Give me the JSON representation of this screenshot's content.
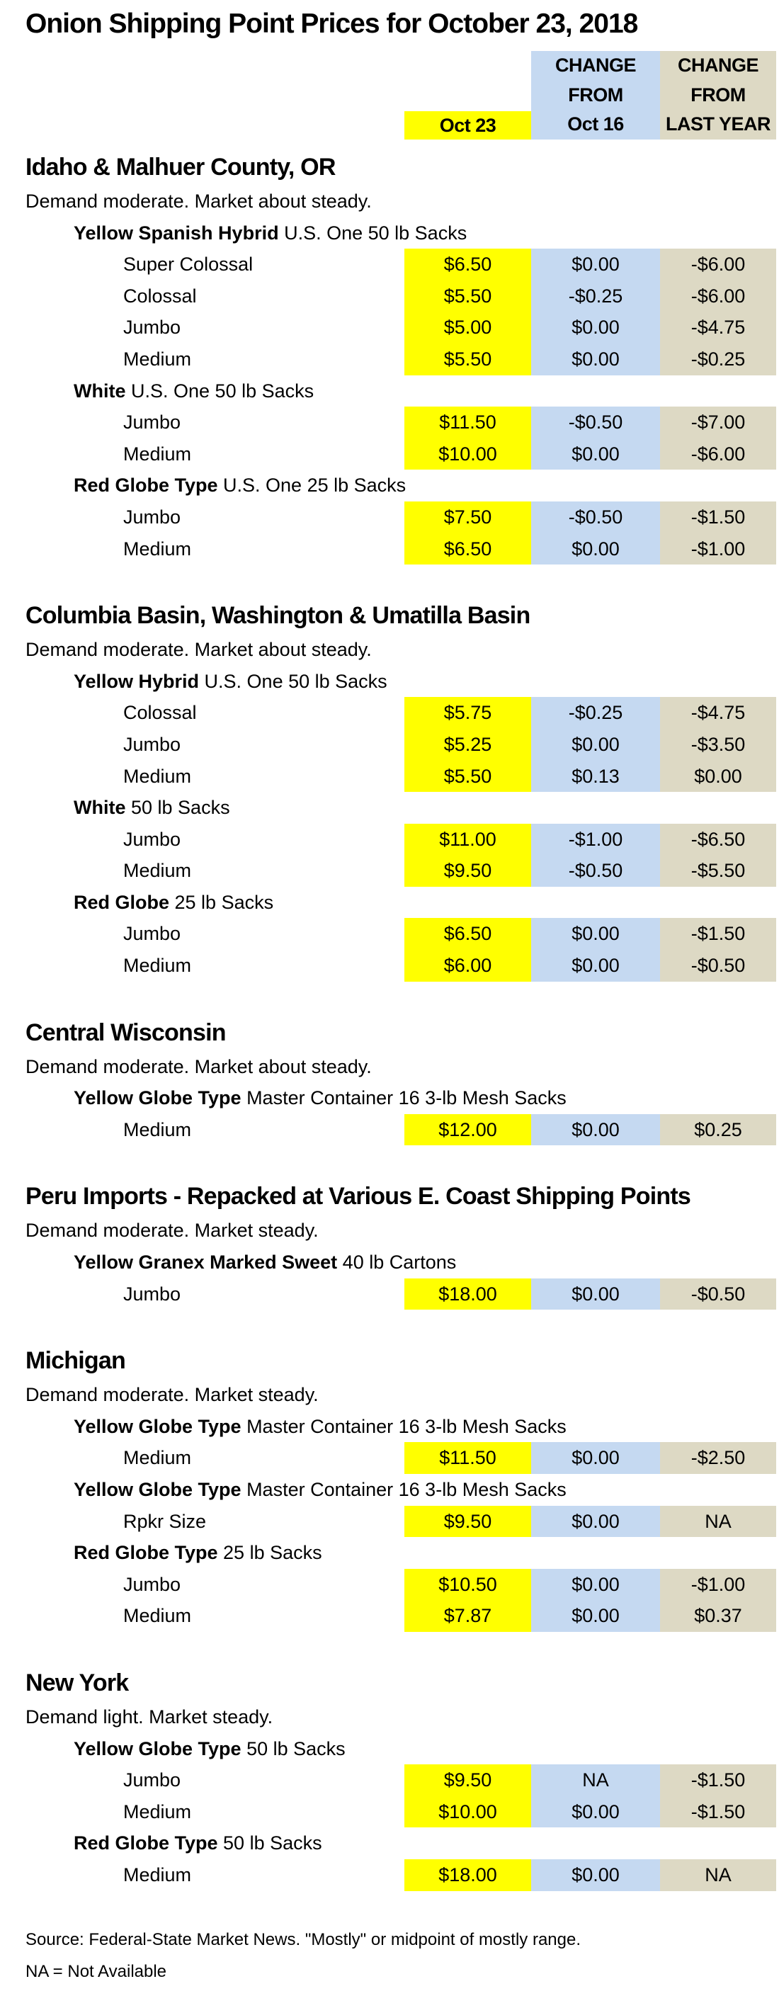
{
  "title": "Onion Shipping Point Prices for October 23, 2018",
  "colors": {
    "current": "#FFFF00",
    "week_change": "#C5D9F1",
    "year_change": "#DDD9C4"
  },
  "columns": {
    "current": [
      "Oct 23"
    ],
    "week_change": [
      "CHANGE",
      "FROM",
      "Oct 16"
    ],
    "year_change": [
      "CHANGE",
      "FROM",
      "LAST YEAR"
    ]
  },
  "sections": [
    {
      "name": "Idaho & Malhuer County, OR",
      "demand": "Demand moderate. Market about steady.",
      "groups": [
        {
          "variety": "Yellow Spanish Hybrid",
          "pack": " U.S. One 50 lb Sacks",
          "rows": [
            {
              "size": "Super Colossal",
              "price": "$6.50",
              "wk": "$0.00",
              "yr": "-$6.00"
            },
            {
              "size": "Colossal",
              "price": "$5.50",
              "wk": "-$0.25",
              "yr": "-$6.00"
            },
            {
              "size": "Jumbo",
              "price": "$5.00",
              "wk": "$0.00",
              "yr": "-$4.75"
            },
            {
              "size": "Medium",
              "price": "$5.50",
              "wk": "$0.00",
              "yr": "-$0.25"
            }
          ]
        },
        {
          "variety": "White",
          "pack": " U.S. One 50 lb Sacks",
          "rows": [
            {
              "size": "Jumbo",
              "price": "$11.50",
              "wk": "-$0.50",
              "yr": "-$7.00"
            },
            {
              "size": "Medium",
              "price": "$10.00",
              "wk": "$0.00",
              "yr": "-$6.00"
            }
          ]
        },
        {
          "variety": "Red Globe Type",
          "pack": " U.S. One 25 lb Sacks",
          "rows": [
            {
              "size": "Jumbo",
              "price": "$7.50",
              "wk": "-$0.50",
              "yr": "-$1.50"
            },
            {
              "size": "Medium",
              "price": "$6.50",
              "wk": "$0.00",
              "yr": "-$1.00"
            }
          ]
        }
      ]
    },
    {
      "name": "Columbia Basin, Washington & Umatilla Basin",
      "demand": "Demand moderate. Market about steady.",
      "groups": [
        {
          "variety": "Yellow Hybrid",
          "pack": " U.S. One 50 lb Sacks",
          "rows": [
            {
              "size": "Colossal",
              "price": "$5.75",
              "wk": "-$0.25",
              "yr": "-$4.75"
            },
            {
              "size": "Jumbo",
              "price": "$5.25",
              "wk": "$0.00",
              "yr": "-$3.50"
            },
            {
              "size": "Medium",
              "price": "$5.50",
              "wk": "$0.13",
              "yr": "$0.00"
            }
          ]
        },
        {
          "variety": "White",
          "pack": " 50 lb Sacks",
          "rows": [
            {
              "size": "Jumbo",
              "price": "$11.00",
              "wk": "-$1.00",
              "yr": "-$6.50"
            },
            {
              "size": "Medium",
              "price": "$9.50",
              "wk": "-$0.50",
              "yr": "-$5.50"
            }
          ]
        },
        {
          "variety": "Red Globe",
          "pack": " 25 lb Sacks",
          "rows": [
            {
              "size": "Jumbo",
              "price": "$6.50",
              "wk": "$0.00",
              "yr": "-$1.50"
            },
            {
              "size": "Medium",
              "price": "$6.00",
              "wk": "$0.00",
              "yr": "-$0.50"
            }
          ]
        }
      ]
    },
    {
      "name": "Central Wisconsin",
      "demand": "Demand moderate. Market about steady.",
      "groups": [
        {
          "variety": "Yellow Globe Type",
          "pack": " Master Container 16 3-lb Mesh Sacks",
          "rows": [
            {
              "size": "Medium",
              "price": "$12.00",
              "wk": "$0.00",
              "yr": "$0.25"
            }
          ]
        }
      ]
    },
    {
      "name": "Peru Imports - Repacked at Various E. Coast Shipping Points",
      "demand": "Demand moderate. Market steady.",
      "groups": [
        {
          "variety": "Yellow Granex Marked Sweet",
          "pack": " 40 lb Cartons",
          "rows": [
            {
              "size": "Jumbo",
              "price": "$18.00",
              "wk": "$0.00",
              "yr": "-$0.50"
            }
          ]
        }
      ]
    },
    {
      "name": "Michigan",
      "demand": "Demand moderate. Market steady.",
      "groups": [
        {
          "variety": "Yellow Globe Type",
          "pack": " Master Container 16 3-lb Mesh Sacks",
          "rows": [
            {
              "size": "Medium",
              "price": "$11.50",
              "wk": "$0.00",
              "yr": "-$2.50"
            }
          ]
        },
        {
          "variety": "Yellow Globe Type",
          "pack": " Master Container 16 3-lb Mesh Sacks",
          "rows": [
            {
              "size": "Rpkr Size",
              "price": "$9.50",
              "wk": "$0.00",
              "yr": "NA"
            }
          ]
        },
        {
          "variety": "Red Globe Type",
          "pack": " 25 lb Sacks",
          "rows": [
            {
              "size": "Jumbo",
              "price": "$10.50",
              "wk": "$0.00",
              "yr": "-$1.00"
            },
            {
              "size": "Medium",
              "price": "$7.87",
              "wk": "$0.00",
              "yr": "$0.37"
            }
          ]
        }
      ]
    },
    {
      "name": "New York",
      "demand": "Demand light. Market steady.",
      "groups": [
        {
          "variety": "Yellow Globe Type",
          "pack": " 50 lb Sacks",
          "rows": [
            {
              "size": "Jumbo",
              "price": "$9.50",
              "wk": "NA",
              "yr": "-$1.50"
            },
            {
              "size": "Medium",
              "price": "$10.00",
              "wk": "$0.00",
              "yr": "-$1.50"
            }
          ]
        },
        {
          "variety": "Red Globe Type",
          "pack": " 50 lb Sacks",
          "rows": [
            {
              "size": "Medium",
              "price": "$18.00",
              "wk": "$0.00",
              "yr": "NA"
            }
          ]
        }
      ]
    }
  ],
  "footer": {
    "source": "Source: Federal-State Market News. \"Mostly\" or midpoint of mostly range.",
    "note": "NA = Not Available"
  }
}
